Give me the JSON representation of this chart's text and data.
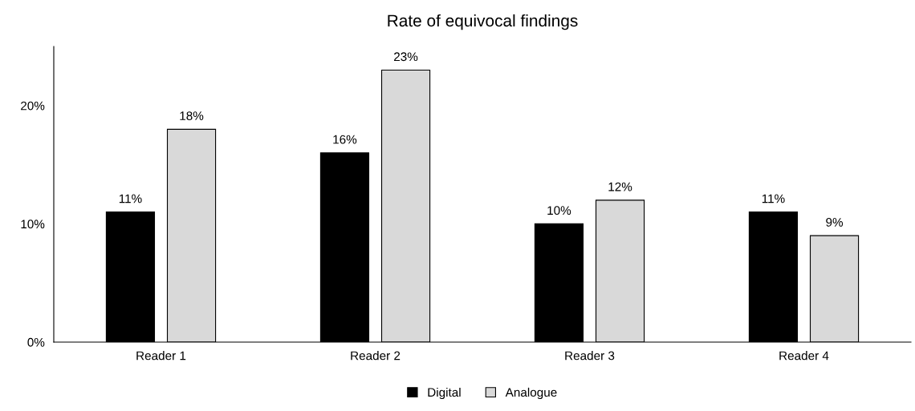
{
  "chart_data": {
    "type": "bar",
    "title": "Rate of equivocal findings",
    "categories": [
      "Reader 1",
      "Reader 2",
      "Reader 3",
      "Reader 4"
    ],
    "series": [
      {
        "name": "Digital",
        "color": "#000000",
        "values": [
          11,
          16,
          10,
          11
        ],
        "value_labels": [
          "11%",
          "16%",
          "10%",
          "11%"
        ]
      },
      {
        "name": "Analogue",
        "color": "#d9d9d9",
        "values": [
          18,
          23,
          12,
          9
        ],
        "value_labels": [
          "18%",
          "23%",
          "12%",
          "9%"
        ]
      }
    ],
    "ylim": [
      0,
      25
    ],
    "yticks": [
      {
        "value": 0,
        "label": "0%"
      },
      {
        "value": 10,
        "label": "10%"
      },
      {
        "value": 20,
        "label": "20%"
      }
    ],
    "grid": false,
    "legend": "bottom"
  }
}
